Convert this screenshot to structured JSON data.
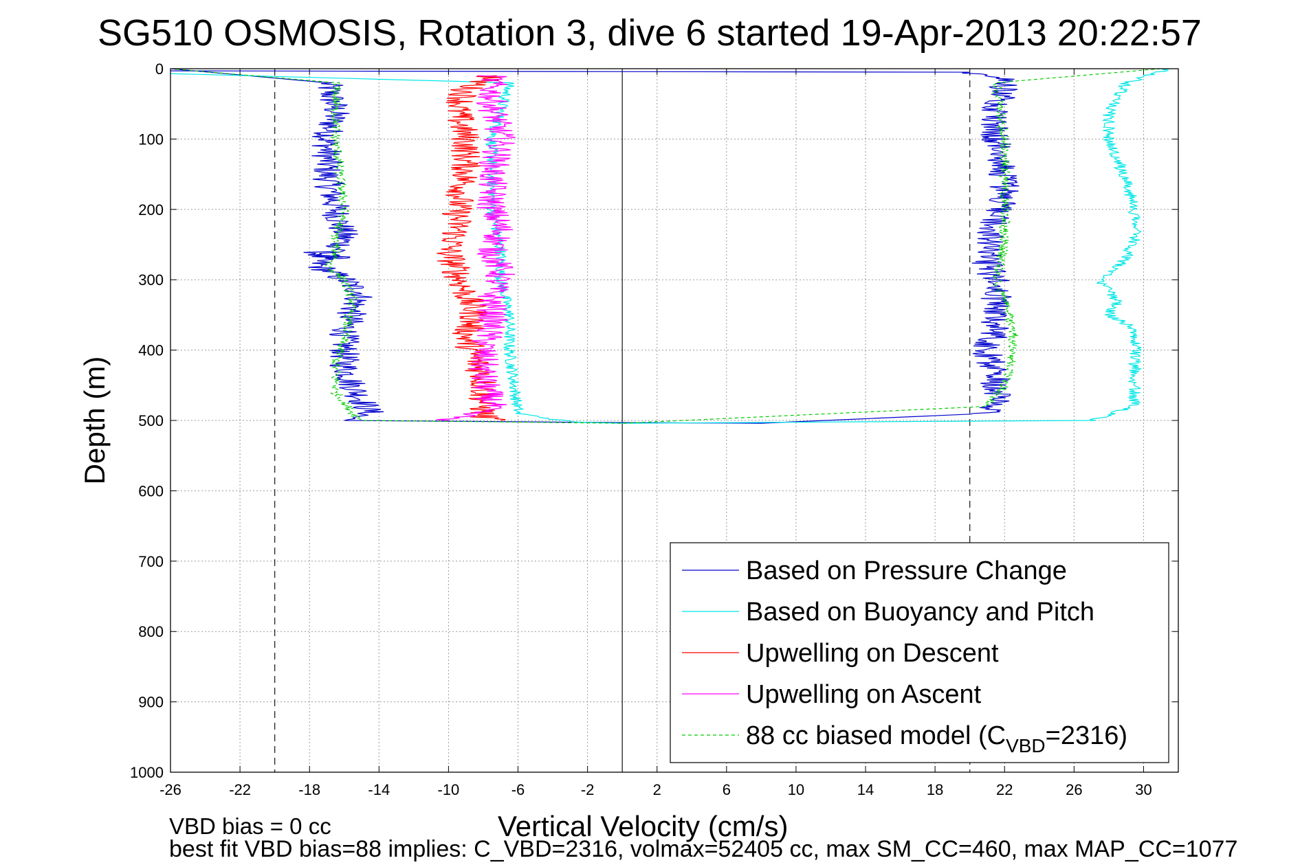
{
  "chart_data": {
    "type": "line",
    "title": "SG510 OSMOSIS, Rotation 3, dive 6 started 19-Apr-2013 20:22:57",
    "xlabel": "Vertical Velocity (cm/s)",
    "ylabel": "Depth (m)",
    "xlim": [
      -26,
      32
    ],
    "ylim": [
      0,
      1000
    ],
    "y_reversed": true,
    "grid": true,
    "legend_position": "bottom-right",
    "x_ticks": [
      -26,
      -22,
      -18,
      -14,
      -10,
      -6,
      -2,
      2,
      6,
      10,
      14,
      18,
      22,
      26,
      30
    ],
    "y_ticks": [
      0,
      100,
      200,
      300,
      400,
      500,
      600,
      700,
      800,
      900,
      1000
    ],
    "reference_lines": [
      {
        "x": -20,
        "style": "dashed"
      },
      {
        "x": 0,
        "style": "solid"
      },
      {
        "x": 20,
        "style": "dashed"
      }
    ],
    "series": [
      {
        "name": "Based on Pressure Change",
        "color": "#0000cc",
        "noise": 0.9,
        "x": [
          -26,
          -17,
          -16.5,
          -17,
          -17,
          -16.5,
          -16,
          -16.5,
          -17.5,
          -17.5,
          -16,
          -15,
          -15.5,
          -16,
          -16,
          -15.5,
          -15,
          -14.5,
          -16,
          0,
          8,
          21,
          21.5,
          21.5,
          21,
          21.5,
          21.5,
          21.5,
          21,
          21,
          21.5,
          22,
          22,
          21.5,
          21.5,
          22,
          22,
          21.5,
          20,
          -26
        ],
        "y": [
          0,
          20,
          60,
          100,
          150,
          200,
          240,
          270,
          260,
          280,
          300,
          320,
          340,
          380,
          420,
          450,
          470,
          490,
          500,
          503,
          504,
          490,
          470,
          440,
          400,
          370,
          340,
          300,
          280,
          250,
          210,
          180,
          140,
          100,
          60,
          40,
          20,
          10,
          5,
          3
        ]
      },
      {
        "name": "Based on Buoyancy and Pitch",
        "color": "#00e6e6",
        "noise": 0.35,
        "x": [
          -26,
          -6.5,
          -7,
          -7.5,
          -7.5,
          -7.5,
          -7,
          -7,
          -6.5,
          -6.5,
          -6,
          -3,
          0,
          27,
          29.5,
          29.5,
          29.5,
          29.5,
          28,
          28.5,
          27.5,
          29,
          29.5,
          29.5,
          29,
          28.5,
          28,
          28,
          29,
          31.5
        ],
        "y": [
          7,
          20,
          60,
          100,
          150,
          200,
          260,
          300,
          350,
          400,
          490,
          502,
          504,
          500,
          480,
          440,
          400,
          370,
          350,
          330,
          300,
          270,
          240,
          200,
          160,
          130,
          100,
          60,
          20,
          0
        ]
      },
      {
        "name": "Upwelling on Descent",
        "color": "#ff0000",
        "noise": 0.9,
        "x": [
          -7.5,
          -9,
          -9.5,
          -9,
          -9,
          -9.5,
          -9.5,
          -10,
          -9.5,
          -9,
          -8.5,
          -9,
          -8.5,
          -8,
          -8,
          -8,
          -7
        ],
        "y": [
          10,
          30,
          60,
          100,
          150,
          200,
          230,
          260,
          290,
          320,
          350,
          380,
          410,
          440,
          470,
          495,
          500
        ]
      },
      {
        "name": "Upwelling on Ascent",
        "color": "#ff00ff",
        "noise": 0.9,
        "x": [
          -7.5,
          -7.5,
          -7,
          -7.5,
          -7.5,
          -7,
          -7.5,
          -7,
          -7.5,
          -7.5,
          -8,
          -8,
          -7.5,
          -10
        ],
        "y": [
          10,
          50,
          100,
          150,
          200,
          230,
          260,
          290,
          320,
          360,
          400,
          440,
          480,
          500
        ]
      },
      {
        "name": "88 cc biased model (C_VBD=2316)",
        "color": "#00cc00",
        "noise": 0.3,
        "x": [
          -26,
          -16.5,
          -16.5,
          -16,
          -16.5,
          -16.5,
          -17,
          -16,
          -15.5,
          -16,
          -16.5,
          -16.5,
          -15.5,
          -15,
          0,
          21,
          22,
          22.5,
          22.5,
          22,
          21.5,
          22,
          22,
          22,
          21.5,
          31
        ],
        "y": [
          0,
          20,
          100,
          200,
          240,
          270,
          280,
          300,
          330,
          380,
          420,
          460,
          490,
          500,
          504,
          480,
          450,
          400,
          370,
          330,
          300,
          250,
          200,
          100,
          20,
          0
        ]
      }
    ],
    "legend_subscript": "VBD",
    "legend_subscript_line": {
      "pre": "88 cc biased model (C",
      "post": "=2316)"
    }
  },
  "footer": {
    "line1": "VBD bias = 0 cc",
    "line2": "best fit VBD bias=88 implies: C_VBD=2316, volmax=52405 cc, max SM_CC=460, max MAP_CC=1077"
  }
}
